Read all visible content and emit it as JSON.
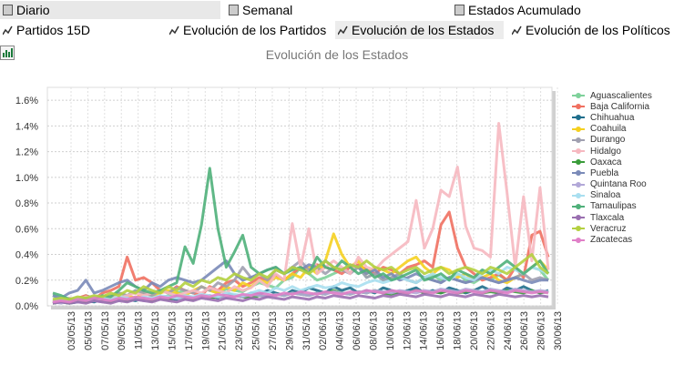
{
  "tabs": {
    "diario": "Diario",
    "semanal": "Semanal",
    "estados_acumulado": "Estados Acumulado",
    "partidos_15d": "Partidos 15D",
    "evolucion_partidos": "Evolución de los Partidos",
    "evolucion_estados": "Evolución de los Estados",
    "evolucion_politicos": "Evolución de los Políticos",
    "selected": "Evolución de los Estados"
  },
  "chart_data": {
    "type": "line",
    "title": "Evolución de los Estados",
    "ylim": [
      0,
      1.7
    ],
    "yticks": [
      "0.0%",
      "0.2%",
      "0.4%",
      "0.6%",
      "0.8%",
      "1.0%",
      "1.2%",
      "1.4%",
      "1.6%"
    ],
    "ytick_values": [
      0,
      0.2,
      0.4,
      0.6,
      0.8,
      1.0,
      1.2,
      1.4,
      1.6
    ],
    "xticks": [
      "03/05/13",
      "05/05/13",
      "07/05/13",
      "09/05/13",
      "11/05/13",
      "13/05/13",
      "15/05/13",
      "17/05/13",
      "19/05/13",
      "21/05/13",
      "23/05/13",
      "25/05/13",
      "27/05/13",
      "29/05/13",
      "31/05/13",
      "02/06/13",
      "04/06/13",
      "06/06/13",
      "08/06/13",
      "10/06/13",
      "12/06/13",
      "14/06/13",
      "16/06/13",
      "18/06/13",
      "20/06/13",
      "22/06/13",
      "24/06/13",
      "26/06/13",
      "28/06/13",
      "30/06/13"
    ],
    "grid": true,
    "legend_position": "right",
    "series": [
      {
        "name": "Aguascalientes",
        "color": "#7fd19b",
        "values": [
          0.08,
          0.05,
          0.06,
          0.04,
          0.08,
          0.06,
          0.05,
          0.07,
          0.1,
          0.08,
          0.12,
          0.1,
          0.09,
          0.06,
          0.08,
          0.1,
          0.12,
          0.1,
          0.15,
          0.12,
          0.1,
          0.13,
          0.12,
          0.11,
          0.15,
          0.18,
          0.16,
          0.14,
          0.2,
          0.22,
          0.3,
          0.25,
          0.2,
          0.22,
          0.25,
          0.28,
          0.26,
          0.3,
          0.22,
          0.25,
          0.2,
          0.22,
          0.24,
          0.2,
          0.18,
          0.22,
          0.24,
          0.2,
          0.22,
          0.25,
          0.2,
          0.18,
          0.22,
          0.2,
          0.24,
          0.2,
          0.22,
          0.25,
          0.3,
          0.28,
          0.2
        ]
      },
      {
        "name": "Baja California",
        "color": "#f07060",
        "values": [
          0.02,
          0.03,
          0.05,
          0.06,
          0.08,
          0.05,
          0.1,
          0.12,
          0.15,
          0.38,
          0.2,
          0.22,
          0.18,
          0.12,
          0.1,
          0.15,
          0.12,
          0.1,
          0.08,
          0.15,
          0.12,
          0.18,
          0.2,
          0.15,
          0.18,
          0.22,
          0.2,
          0.24,
          0.2,
          0.25,
          0.3,
          0.28,
          0.32,
          0.3,
          0.28,
          0.25,
          0.3,
          0.32,
          0.28,
          0.25,
          0.3,
          0.28,
          0.25,
          0.3,
          0.32,
          0.35,
          0.3,
          0.63,
          0.73,
          0.45,
          0.3,
          0.25,
          0.2,
          0.22,
          0.25,
          0.2,
          0.3,
          0.22,
          0.55,
          0.58,
          0.38
        ]
      },
      {
        "name": "Chihuahua",
        "color": "#1f6e8c",
        "values": [
          0.02,
          0.03,
          0.02,
          0.03,
          0.04,
          0.03,
          0.05,
          0.04,
          0.06,
          0.05,
          0.04,
          0.06,
          0.05,
          0.07,
          0.06,
          0.05,
          0.08,
          0.06,
          0.07,
          0.08,
          0.06,
          0.1,
          0.08,
          0.07,
          0.1,
          0.09,
          0.12,
          0.1,
          0.08,
          0.12,
          0.1,
          0.14,
          0.12,
          0.1,
          0.15,
          0.12,
          0.14,
          0.1,
          0.12,
          0.1,
          0.14,
          0.12,
          0.1,
          0.12,
          0.14,
          0.1,
          0.12,
          0.1,
          0.14,
          0.12,
          0.1,
          0.12,
          0.15,
          0.12,
          0.1,
          0.14,
          0.12,
          0.15,
          0.12,
          0.1,
          0.12
        ]
      },
      {
        "name": "Coahuila",
        "color": "#f5d020",
        "values": [
          0.03,
          0.04,
          0.05,
          0.04,
          0.06,
          0.05,
          0.07,
          0.06,
          0.05,
          0.08,
          0.06,
          0.1,
          0.08,
          0.1,
          0.12,
          0.1,
          0.08,
          0.12,
          0.15,
          0.12,
          0.1,
          0.15,
          0.12,
          0.18,
          0.15,
          0.2,
          0.18,
          0.22,
          0.2,
          0.25,
          0.22,
          0.3,
          0.25,
          0.35,
          0.56,
          0.4,
          0.3,
          0.35,
          0.25,
          0.3,
          0.28,
          0.25,
          0.3,
          0.35,
          0.38,
          0.3,
          0.25,
          0.3,
          0.28,
          0.22,
          0.25,
          0.2,
          0.22,
          0.25,
          0.2,
          0.18,
          0.22,
          0.25,
          0.3,
          0.35,
          0.28
        ]
      },
      {
        "name": "Durango",
        "color": "#a0a0b0",
        "values": [
          0.04,
          0.05,
          0.04,
          0.06,
          0.05,
          0.07,
          0.06,
          0.08,
          0.1,
          0.08,
          0.12,
          0.1,
          0.08,
          0.12,
          0.1,
          0.14,
          0.12,
          0.1,
          0.15,
          0.12,
          0.18,
          0.15,
          0.2,
          0.3,
          0.22,
          0.25,
          0.2,
          0.28,
          0.25,
          0.3,
          0.35,
          0.28,
          0.3,
          0.25,
          0.3,
          0.28,
          0.25,
          0.3,
          0.22,
          0.25,
          0.2,
          0.22,
          0.25,
          0.2,
          0.18,
          0.22,
          0.2,
          0.18,
          0.22,
          0.2,
          0.18,
          0.2,
          0.22,
          0.2,
          0.18,
          0.2,
          0.22,
          0.25,
          0.2,
          0.22,
          0.2
        ]
      },
      {
        "name": "Hidalgo",
        "color": "#f6b8c0",
        "values": [
          0.05,
          0.04,
          0.06,
          0.05,
          0.07,
          0.06,
          0.08,
          0.07,
          0.06,
          0.08,
          0.1,
          0.08,
          0.1,
          0.12,
          0.1,
          0.08,
          0.1,
          0.12,
          0.1,
          0.14,
          0.12,
          0.1,
          0.15,
          0.12,
          0.14,
          0.2,
          0.15,
          0.25,
          0.2,
          0.64,
          0.3,
          0.6,
          0.25,
          0.3,
          0.35,
          0.3,
          0.25,
          0.38,
          0.3,
          0.28,
          0.35,
          0.4,
          0.45,
          0.5,
          0.82,
          0.45,
          0.6,
          0.9,
          0.85,
          1.08,
          0.62,
          0.45,
          0.43,
          0.38,
          1.42,
          0.88,
          0.3,
          0.85,
          0.35,
          0.92,
          0.28
        ]
      },
      {
        "name": "Oaxaca",
        "color": "#3a9c3a",
        "values": [
          0.02,
          0.03,
          0.02,
          0.04,
          0.03,
          0.05,
          0.04,
          0.03,
          0.05,
          0.04,
          0.06,
          0.05,
          0.04,
          0.06,
          0.05,
          0.07,
          0.06,
          0.05,
          0.08,
          0.06,
          0.07,
          0.06,
          0.08,
          0.07,
          0.06,
          0.08,
          0.07,
          0.09,
          0.08,
          0.1,
          0.09,
          0.08,
          0.1,
          0.09,
          0.12,
          0.1,
          0.09,
          0.11,
          0.1,
          0.12,
          0.1,
          0.09,
          0.11,
          0.1,
          0.12,
          0.1,
          0.11,
          0.1,
          0.12,
          0.1,
          0.11,
          0.12,
          0.1,
          0.11,
          0.1,
          0.12,
          0.11,
          0.1,
          0.12,
          0.1,
          0.11
        ]
      },
      {
        "name": "Puebla",
        "color": "#7a8ab8",
        "values": [
          0.08,
          0.06,
          0.1,
          0.12,
          0.2,
          0.1,
          0.12,
          0.15,
          0.18,
          0.2,
          0.15,
          0.12,
          0.18,
          0.15,
          0.2,
          0.22,
          0.2,
          0.18,
          0.2,
          0.25,
          0.3,
          0.35,
          0.25,
          0.2,
          0.22,
          0.25,
          0.28,
          0.3,
          0.25,
          0.3,
          0.28,
          0.32,
          0.3,
          0.35,
          0.3,
          0.28,
          0.32,
          0.3,
          0.25,
          0.28,
          0.22,
          0.25,
          0.2,
          0.22,
          0.25,
          0.22,
          0.2,
          0.18,
          0.22,
          0.2,
          0.18,
          0.2,
          0.22,
          0.2,
          0.18,
          0.2,
          0.22,
          0.2,
          0.18,
          0.2,
          0.2
        ]
      },
      {
        "name": "Quintana Roo",
        "color": "#b2a8d8",
        "values": [
          0.03,
          0.02,
          0.04,
          0.03,
          0.05,
          0.04,
          0.03,
          0.05,
          0.04,
          0.06,
          0.05,
          0.04,
          0.06,
          0.05,
          0.07,
          0.06,
          0.05,
          0.07,
          0.06,
          0.08,
          0.07,
          0.06,
          0.08,
          0.07,
          0.09,
          0.08,
          0.07,
          0.09,
          0.08,
          0.1,
          0.09,
          0.08,
          0.1,
          0.09,
          0.11,
          0.1,
          0.09,
          0.11,
          0.1,
          0.12,
          0.11,
          0.1,
          0.12,
          0.11,
          0.1,
          0.12,
          0.11,
          0.13,
          0.12,
          0.11,
          0.13,
          0.12,
          0.11,
          0.13,
          0.12,
          0.11,
          0.13,
          0.12,
          0.11,
          0.12,
          0.11
        ]
      },
      {
        "name": "Sinaloa",
        "color": "#a9dff0",
        "values": [
          0.04,
          0.05,
          0.04,
          0.06,
          0.05,
          0.04,
          0.06,
          0.05,
          0.07,
          0.06,
          0.05,
          0.07,
          0.06,
          0.08,
          0.07,
          0.06,
          0.08,
          0.07,
          0.09,
          0.08,
          0.07,
          0.1,
          0.09,
          0.08,
          0.1,
          0.12,
          0.1,
          0.14,
          0.12,
          0.15,
          0.12,
          0.14,
          0.16,
          0.14,
          0.15,
          0.18,
          0.16,
          0.15,
          0.18,
          0.2,
          0.18,
          0.2,
          0.22,
          0.2,
          0.18,
          0.22,
          0.25,
          0.22,
          0.2,
          0.25,
          0.22,
          0.2,
          0.25,
          0.28,
          0.25,
          0.3,
          0.28,
          0.25,
          0.3,
          0.28,
          0.25
        ]
      },
      {
        "name": "Tamaulipas",
        "color": "#4fb07a",
        "values": [
          0.1,
          0.08,
          0.05,
          0.04,
          0.06,
          0.05,
          0.08,
          0.07,
          0.12,
          0.18,
          0.15,
          0.12,
          0.1,
          0.12,
          0.15,
          0.18,
          0.46,
          0.33,
          0.63,
          1.07,
          0.6,
          0.3,
          0.42,
          0.55,
          0.3,
          0.25,
          0.28,
          0.3,
          0.25,
          0.28,
          0.3,
          0.25,
          0.38,
          0.3,
          0.28,
          0.35,
          0.3,
          0.25,
          0.28,
          0.22,
          0.25,
          0.2,
          0.22,
          0.25,
          0.28,
          0.2,
          0.22,
          0.25,
          0.2,
          0.28,
          0.25,
          0.22,
          0.28,
          0.25,
          0.3,
          0.35,
          0.3,
          0.25,
          0.3,
          0.35,
          0.25
        ]
      },
      {
        "name": "Tlaxcala",
        "color": "#9a6fb0",
        "values": [
          0.02,
          0.03,
          0.02,
          0.03,
          0.02,
          0.04,
          0.03,
          0.02,
          0.04,
          0.03,
          0.05,
          0.04,
          0.03,
          0.05,
          0.04,
          0.03,
          0.05,
          0.04,
          0.06,
          0.05,
          0.04,
          0.06,
          0.05,
          0.04,
          0.06,
          0.05,
          0.07,
          0.06,
          0.05,
          0.07,
          0.06,
          0.05,
          0.07,
          0.06,
          0.08,
          0.07,
          0.06,
          0.08,
          0.07,
          0.06,
          0.08,
          0.07,
          0.09,
          0.08,
          0.07,
          0.09,
          0.08,
          0.07,
          0.09,
          0.08,
          0.07,
          0.09,
          0.08,
          0.07,
          0.09,
          0.08,
          0.07,
          0.08,
          0.07,
          0.08,
          0.07
        ]
      },
      {
        "name": "Veracruz",
        "color": "#b4d040",
        "values": [
          0.05,
          0.06,
          0.05,
          0.07,
          0.06,
          0.08,
          0.07,
          0.1,
          0.08,
          0.12,
          0.1,
          0.15,
          0.12,
          0.1,
          0.15,
          0.12,
          0.18,
          0.15,
          0.2,
          0.18,
          0.22,
          0.2,
          0.25,
          0.22,
          0.2,
          0.25,
          0.22,
          0.28,
          0.25,
          0.3,
          0.28,
          0.25,
          0.3,
          0.35,
          0.3,
          0.28,
          0.32,
          0.3,
          0.35,
          0.3,
          0.28,
          0.3,
          0.25,
          0.28,
          0.3,
          0.25,
          0.28,
          0.3,
          0.25,
          0.28,
          0.3,
          0.28,
          0.25,
          0.3,
          0.28,
          0.25,
          0.3,
          0.35,
          0.4,
          0.3,
          0.25
        ]
      },
      {
        "name": "Zacatecas",
        "color": "#e080c8",
        "values": [
          0.03,
          0.04,
          0.03,
          0.05,
          0.04,
          0.06,
          0.05,
          0.04,
          0.06,
          0.05,
          0.07,
          0.06,
          0.05,
          0.07,
          0.06,
          0.08,
          0.07,
          0.06,
          0.08,
          0.07,
          0.09,
          0.08,
          0.07,
          0.09,
          0.08,
          0.1,
          0.09,
          0.08,
          0.1,
          0.09,
          0.11,
          0.1,
          0.09,
          0.11,
          0.1,
          0.09,
          0.11,
          0.1,
          0.12,
          0.11,
          0.1,
          0.12,
          0.11,
          0.1,
          0.12,
          0.11,
          0.1,
          0.12,
          0.11,
          0.1,
          0.12,
          0.11,
          0.1,
          0.12,
          0.11,
          0.1,
          0.12,
          0.11,
          0.1,
          0.11,
          0.1
        ]
      }
    ]
  }
}
